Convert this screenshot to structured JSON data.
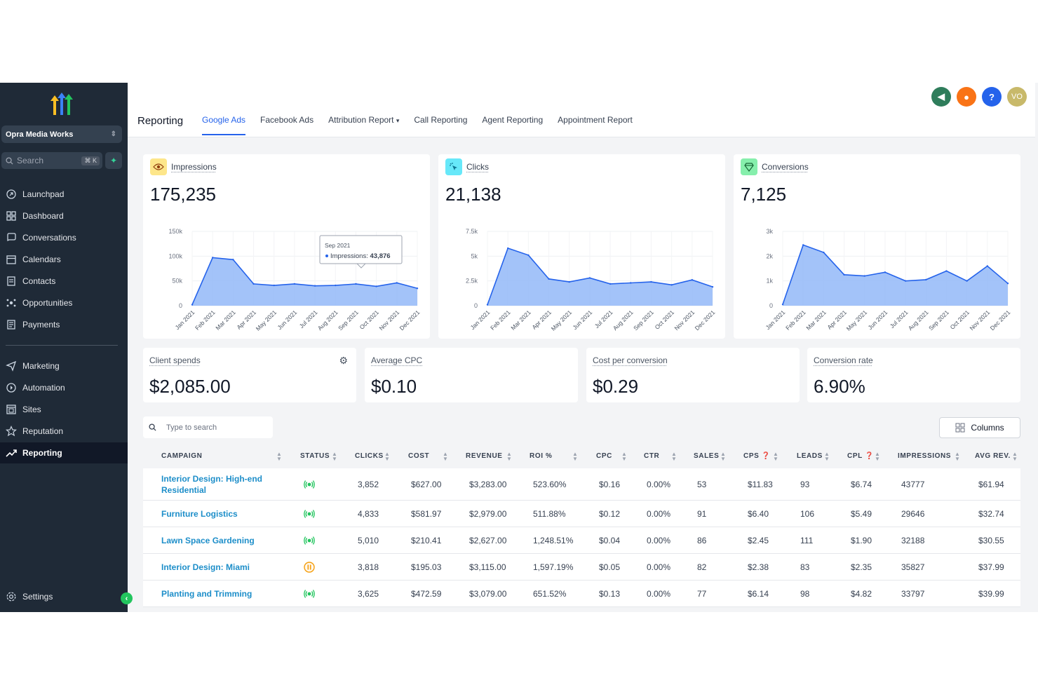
{
  "sidebar": {
    "account": "Opra Media Works",
    "search_placeholder": "Search",
    "search_shortcut": "⌘ K",
    "nav": [
      {
        "label": "Launchpad",
        "icon": "launchpad-icon"
      },
      {
        "label": "Dashboard",
        "icon": "dashboard-icon"
      },
      {
        "label": "Conversations",
        "icon": "chat-icon"
      },
      {
        "label": "Calendars",
        "icon": "calendar-icon"
      },
      {
        "label": "Contacts",
        "icon": "contacts-icon"
      },
      {
        "label": "Opportunities",
        "icon": "opportunities-icon"
      },
      {
        "label": "Payments",
        "icon": "payments-icon"
      },
      {
        "label": "Marketing",
        "icon": "send-icon"
      },
      {
        "label": "Automation",
        "icon": "automation-icon"
      },
      {
        "label": "Sites",
        "icon": "sites-icon"
      },
      {
        "label": "Reputation",
        "icon": "star-icon"
      },
      {
        "label": "Reporting",
        "icon": "trend-icon"
      }
    ],
    "settings": "Settings"
  },
  "header": {
    "title": "Reporting",
    "tabs": [
      "Google Ads",
      "Facebook Ads",
      "Attribution Report",
      "Call Reporting",
      "Agent Reporting",
      "Appointment Report"
    ],
    "active_tab": "Google Ads",
    "avatar": "VO",
    "colors": {
      "announce": "#2f7d5b",
      "bell": "#f97316",
      "help": "#2563eb",
      "avatar": "#c8b96a"
    }
  },
  "metrics": [
    {
      "label": "Impressions",
      "value": "175,235",
      "icon": "eye-icon",
      "badge_color": "#fde68a"
    },
    {
      "label": "Clicks",
      "value": "21,138",
      "icon": "cursor-click-icon",
      "badge_color": "#67e8f9"
    },
    {
      "label": "Conversions",
      "value": "7,125",
      "icon": "diamond-icon",
      "badge_color": "#86efac"
    }
  ],
  "tooltip": {
    "month": "Sep 2021",
    "label": "Impressions:",
    "value": "43,876"
  },
  "chart_data": [
    {
      "type": "area",
      "x": [
        "Jan 2021",
        "Feb 2021",
        "Mar 2021",
        "Apr 2021",
        "May 2021",
        "Jun 2021",
        "Jul 2021",
        "Aug 2021",
        "Sep 2021",
        "Oct 2021",
        "Nov 2021",
        "Dec 2021"
      ],
      "series": [
        {
          "values": [
            2000,
            97000,
            93000,
            44000,
            41000,
            44000,
            40000,
            41000,
            43876,
            39000,
            46000,
            35000
          ]
        }
      ],
      "ylim": [
        0,
        150000
      ],
      "yticks": [
        "0",
        "50k",
        "100k",
        "150k"
      ],
      "color": "#3b82f6"
    },
    {
      "type": "area",
      "x": [
        "Jan 2021",
        "Feb 2021",
        "Mar 2021",
        "Apr 2021",
        "May 2021",
        "Jun 2021",
        "Jul 2021",
        "Aug 2021",
        "Sep 2021",
        "Oct 2021",
        "Nov 2021",
        "Dec 2021"
      ],
      "series": [
        {
          "values": [
            100,
            5800,
            5100,
            2700,
            2400,
            2800,
            2200,
            2300,
            2400,
            2100,
            2600,
            1900
          ]
        }
      ],
      "ylim": [
        0,
        7500
      ],
      "yticks": [
        "0",
        "2.5k",
        "5k",
        "7.5k"
      ],
      "color": "#3b82f6"
    },
    {
      "type": "area",
      "x": [
        "Jan 2021",
        "Feb 2021",
        "Mar 2021",
        "Apr 2021",
        "May 2021",
        "Jun 2021",
        "Jul 2021",
        "Aug 2021",
        "Sep 2021",
        "Oct 2021",
        "Nov 2021",
        "Dec 2021"
      ],
      "series": [
        {
          "values": [
            50,
            2450,
            2150,
            1250,
            1200,
            1350,
            1000,
            1050,
            1400,
            1000,
            1600,
            900
          ]
        }
      ],
      "ylim": [
        0,
        3000
      ],
      "yticks": [
        "0",
        "1k",
        "2k",
        "3k"
      ],
      "color": "#3b82f6"
    }
  ],
  "kpis": [
    {
      "label": "Client spends",
      "value": "$2,085.00"
    },
    {
      "label": "Average CPC",
      "value": "$0.10"
    },
    {
      "label": "Cost per conversion",
      "value": "$0.29"
    },
    {
      "label": "Conversion rate",
      "value": "6.90%"
    }
  ],
  "table": {
    "search_placeholder": "Type to search",
    "columns_button": "Columns",
    "headers": [
      "CAMPAIGN",
      "STATUS",
      "CLICKS",
      "COST",
      "REVENUE",
      "ROI %",
      "CPC",
      "CTR",
      "SALES",
      "CPS",
      "LEADS",
      "CPL",
      "IMPRESSIONS",
      "AVG REV."
    ],
    "rows": [
      {
        "campaign": "Interior Design: High-end Residential",
        "status": "active",
        "clicks": "3,852",
        "cost": "$627.00",
        "revenue": "$3,283.00",
        "roi": "523.60%",
        "cpc": "$0.16",
        "ctr": "0.00%",
        "sales": "53",
        "cps": "$11.83",
        "leads": "93",
        "cpl": "$6.74",
        "impressions": "43777",
        "avg_rev": "$61.94"
      },
      {
        "campaign": "Furniture Logistics",
        "status": "active",
        "clicks": "4,833",
        "cost": "$581.97",
        "revenue": "$2,979.00",
        "roi": "511.88%",
        "cpc": "$0.12",
        "ctr": "0.00%",
        "sales": "91",
        "cps": "$6.40",
        "leads": "106",
        "cpl": "$5.49",
        "impressions": "29646",
        "avg_rev": "$32.74"
      },
      {
        "campaign": "Lawn Space Gardening",
        "status": "active",
        "clicks": "5,010",
        "cost": "$210.41",
        "revenue": "$2,627.00",
        "roi": "1,248.51%",
        "cpc": "$0.04",
        "ctr": "0.00%",
        "sales": "86",
        "cps": "$2.45",
        "leads": "111",
        "cpl": "$1.90",
        "impressions": "32188",
        "avg_rev": "$30.55"
      },
      {
        "campaign": "Interior Design: Miami",
        "status": "paused",
        "clicks": "3,818",
        "cost": "$195.03",
        "revenue": "$3,115.00",
        "roi": "1,597.19%",
        "cpc": "$0.05",
        "ctr": "0.00%",
        "sales": "82",
        "cps": "$2.38",
        "leads": "83",
        "cpl": "$2.35",
        "impressions": "35827",
        "avg_rev": "$37.99"
      },
      {
        "campaign": "Planting and Trimming",
        "status": "active",
        "clicks": "3,625",
        "cost": "$472.59",
        "revenue": "$3,079.00",
        "roi": "651.52%",
        "cpc": "$0.13",
        "ctr": "0.00%",
        "sales": "77",
        "cps": "$6.14",
        "leads": "98",
        "cpl": "$4.82",
        "impressions": "33797",
        "avg_rev": "$39.99"
      }
    ]
  }
}
